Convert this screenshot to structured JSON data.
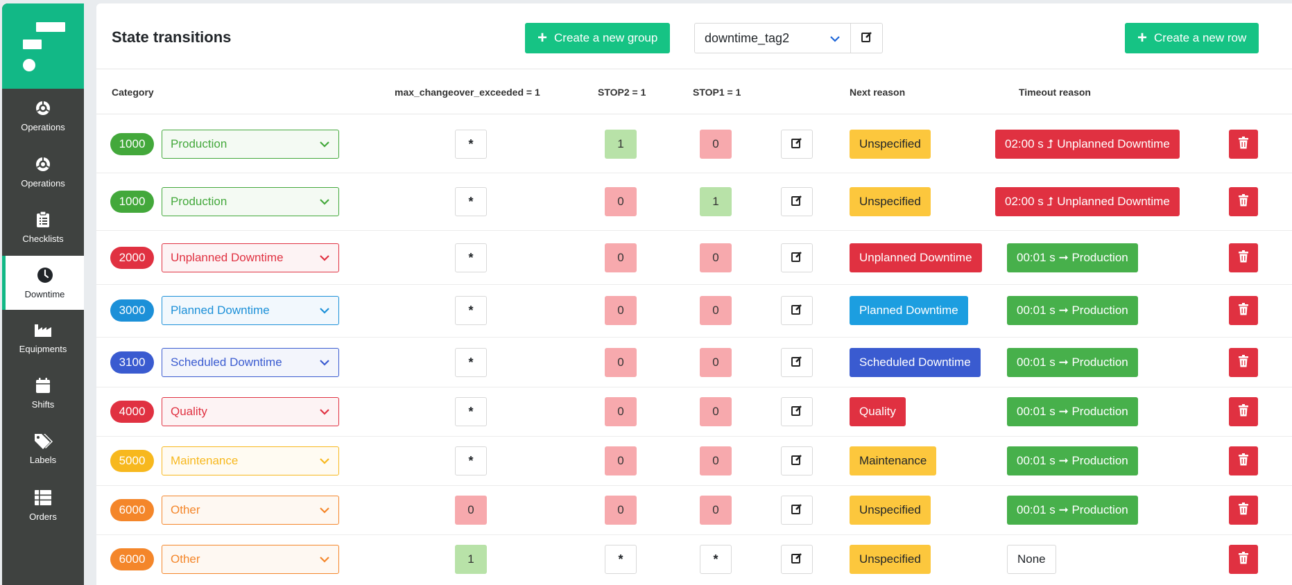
{
  "sidebar": {
    "logo": "logo-icon",
    "items": [
      {
        "label": "Operations",
        "icon": "operations-icon"
      },
      {
        "label": "Operations",
        "icon": "operations-icon"
      },
      {
        "label": "Checklists",
        "icon": "clipboard-icon"
      },
      {
        "label": "Downtime",
        "icon": "clock-icon",
        "active": true
      },
      {
        "label": "Equipments",
        "icon": "factory-icon"
      },
      {
        "label": "Shifts",
        "icon": "calendar-icon"
      },
      {
        "label": "Labels",
        "icon": "tags-icon"
      },
      {
        "label": "Orders",
        "icon": "list-icon"
      }
    ]
  },
  "header": {
    "title": "State transitions",
    "create_group_label": "Create a new group",
    "tag_value": "downtime_tag2",
    "create_row_label": "Create a new row"
  },
  "columns": {
    "category": "Category",
    "max_changeover": "max_changeover_exceeded = 1",
    "stop2": "STOP2 = 1",
    "stop1": "STOP1 = 1",
    "next_reason": "Next reason",
    "timeout_reason": "Timeout reason"
  },
  "colors": {
    "accent": "#16c384",
    "production": "#43a83b",
    "unplanned": "#e03141",
    "planned": "#1c90d8",
    "scheduled": "#3a5bd0",
    "quality": "#e03141",
    "maintenance": "#f7b81e",
    "other": "#f4862a",
    "unspecified": "#fcc73d"
  },
  "rows": [
    {
      "code": "1000",
      "category": "Production",
      "color": "#43a83b",
      "max_changeover": "*",
      "stop2": "1",
      "stop1": "0",
      "next_reason": "Unspecified",
      "next_color": "#fcc73d",
      "next_text_color": "#212529",
      "timeout": "02:00 s ⮥ Unplanned Downtime",
      "timeout_color": "#e03141"
    },
    {
      "code": "1000",
      "category": "Production",
      "color": "#43a83b",
      "max_changeover": "*",
      "stop2": "0",
      "stop1": "1",
      "next_reason": "Unspecified",
      "next_color": "#fcc73d",
      "next_text_color": "#212529",
      "timeout": "02:00 s ⮥ Unplanned Downtime",
      "timeout_color": "#e03141"
    },
    {
      "code": "2000",
      "category": "Unplanned Downtime",
      "color": "#e03141",
      "max_changeover": "*",
      "stop2": "0",
      "stop1": "0",
      "next_reason": "Unplanned Downtime",
      "next_color": "#e03141",
      "next_text_color": "#ffffff",
      "timeout": "00:01 s ➞ Production",
      "timeout_color": "#47b04b"
    },
    {
      "code": "3000",
      "category": "Planned Downtime",
      "color": "#1c90d8",
      "max_changeover": "*",
      "stop2": "0",
      "stop1": "0",
      "next_reason": "Planned Downtime",
      "next_color": "#1c9ee0",
      "next_text_color": "#ffffff",
      "timeout": "00:01 s ➞ Production",
      "timeout_color": "#47b04b"
    },
    {
      "code": "3100",
      "category": "Scheduled Downtime",
      "color": "#3a5bd0",
      "max_changeover": "*",
      "stop2": "0",
      "stop1": "0",
      "next_reason": "Scheduled Downtime",
      "next_color": "#3a5bd0",
      "next_text_color": "#ffffff",
      "timeout": "00:01 s ➞ Production",
      "timeout_color": "#47b04b"
    },
    {
      "code": "4000",
      "category": "Quality",
      "color": "#e03141",
      "max_changeover": "*",
      "stop2": "0",
      "stop1": "0",
      "next_reason": "Quality",
      "next_color": "#e03141",
      "next_text_color": "#ffffff",
      "timeout": "00:01 s ➞ Production",
      "timeout_color": "#47b04b"
    },
    {
      "code": "5000",
      "category": "Maintenance",
      "color": "#f7b81e",
      "max_changeover": "*",
      "stop2": "0",
      "stop1": "0",
      "next_reason": "Maintenance",
      "next_color": "#fcc73d",
      "next_text_color": "#212529",
      "timeout": "00:01 s ➞ Production",
      "timeout_color": "#47b04b"
    },
    {
      "code": "6000",
      "category": "Other",
      "color": "#f4862a",
      "max_changeover": "0",
      "stop2": "0",
      "stop1": "0",
      "next_reason": "Unspecified",
      "next_color": "#fcc73d",
      "next_text_color": "#212529",
      "timeout": "00:01 s ➞ Production",
      "timeout_color": "#47b04b"
    },
    {
      "code": "6000",
      "category": "Other",
      "color": "#f4862a",
      "max_changeover": "1",
      "stop2": "*",
      "stop1": "*",
      "next_reason": "Unspecified",
      "next_color": "#fcc73d",
      "next_text_color": "#212529",
      "timeout": "None",
      "timeout_color": "none"
    }
  ]
}
